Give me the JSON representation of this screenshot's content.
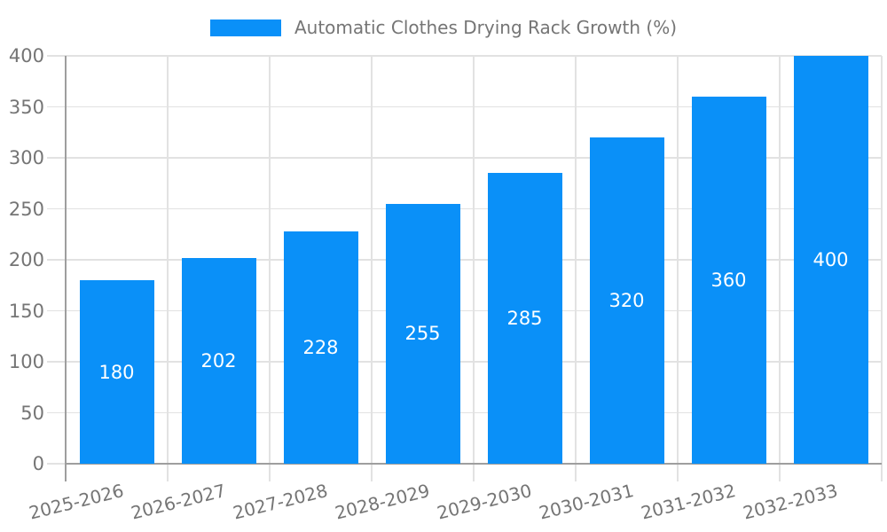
{
  "chart_data": {
    "type": "bar",
    "title": "Automatic Clothes Drying Rack Growth (%)",
    "legend_entries": [
      "Automatic Clothes Drying Rack Growth (%)"
    ],
    "categories": [
      "2025-2026",
      "2026-2027",
      "2027-2028",
      "2028-2029",
      "2029-2030",
      "2030-2031",
      "2031-2032",
      "2032-2033"
    ],
    "values": [
      180,
      202,
      228,
      255,
      285,
      320,
      360,
      400
    ],
    "xlabel": "",
    "ylabel": "",
    "ylim": [
      0,
      400
    ],
    "y_ticks": [
      0,
      50,
      100,
      150,
      200,
      250,
      300,
      350,
      400
    ],
    "grid": "horizontal-and-vertical",
    "legend_position": "top-center",
    "bar_label_position": "inside-middle",
    "x_tick_rotation_deg": -14
  },
  "style": {
    "bar_color": "#0a90f8",
    "bar_label_color": "#ffffff",
    "axis_text_color": "#757575",
    "legend_text_color": "#757575",
    "gridline_color": "#e2e2e2",
    "axis_line_color": "#9e9e9e",
    "background_color": "#ffffff"
  }
}
